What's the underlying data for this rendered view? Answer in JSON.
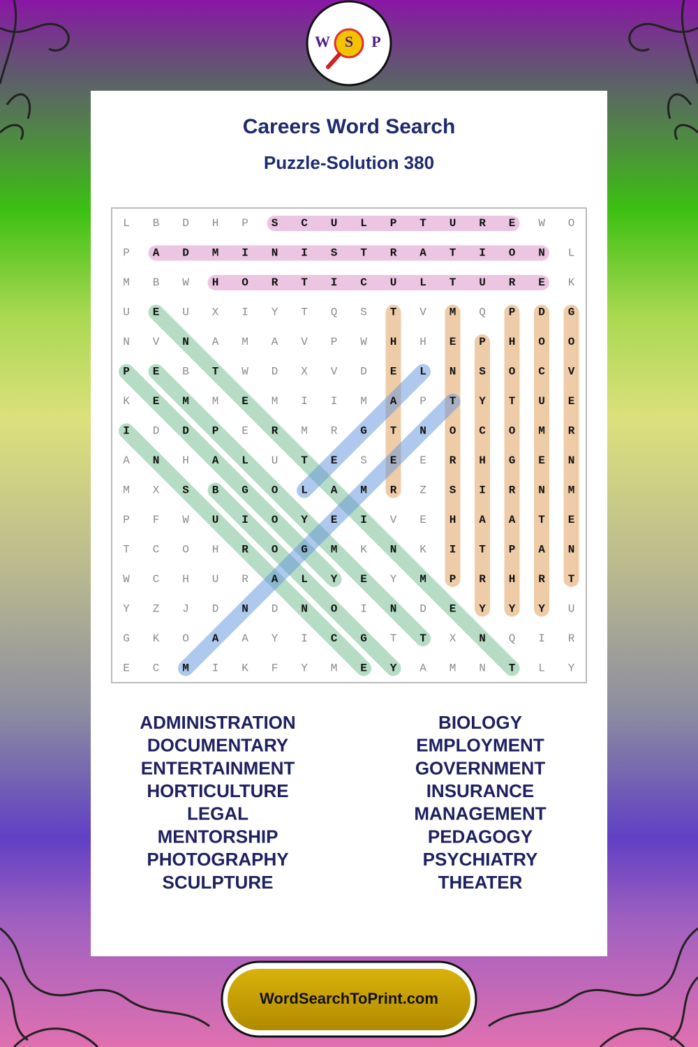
{
  "logo": {
    "letters": [
      "W",
      "S",
      "P"
    ]
  },
  "header": {
    "title": "Careers Word Search",
    "subtitle": "Puzzle-Solution 380"
  },
  "grid": {
    "rows": [
      [
        "L",
        "B",
        "D",
        "H",
        "P",
        "S",
        "C",
        "U",
        "L",
        "P",
        "T",
        "U",
        "R",
        "E",
        "W",
        "O"
      ],
      [
        "P",
        "A",
        "D",
        "M",
        "I",
        "N",
        "I",
        "S",
        "T",
        "R",
        "A",
        "T",
        "I",
        "O",
        "N",
        "L"
      ],
      [
        "M",
        "B",
        "W",
        "H",
        "O",
        "R",
        "T",
        "I",
        "C",
        "U",
        "L",
        "T",
        "U",
        "R",
        "E",
        "K"
      ],
      [
        "U",
        "E",
        "U",
        "X",
        "I",
        "Y",
        "T",
        "Q",
        "S",
        "T",
        "V",
        "M",
        "Q",
        "P",
        "D",
        "G"
      ],
      [
        "N",
        "V",
        "N",
        "A",
        "M",
        "A",
        "V",
        "P",
        "W",
        "H",
        "H",
        "E",
        "P",
        "H",
        "O",
        "O"
      ],
      [
        "P",
        "E",
        "B",
        "T",
        "W",
        "D",
        "X",
        "V",
        "D",
        "E",
        "L",
        "N",
        "S",
        "O",
        "C",
        "V"
      ],
      [
        "K",
        "E",
        "M",
        "M",
        "E",
        "M",
        "I",
        "I",
        "M",
        "A",
        "P",
        "T",
        "Y",
        "T",
        "U",
        "E"
      ],
      [
        "I",
        "D",
        "D",
        "P",
        "E",
        "R",
        "M",
        "R",
        "G",
        "T",
        "N",
        "O",
        "C",
        "O",
        "M",
        "R"
      ],
      [
        "A",
        "N",
        "H",
        "A",
        "L",
        "U",
        "T",
        "E",
        "S",
        "E",
        "E",
        "R",
        "H",
        "G",
        "E",
        "N"
      ],
      [
        "M",
        "X",
        "S",
        "B",
        "G",
        "O",
        "L",
        "A",
        "M",
        "R",
        "Z",
        "S",
        "I",
        "R",
        "N",
        "M"
      ],
      [
        "P",
        "F",
        "W",
        "U",
        "I",
        "O",
        "Y",
        "E",
        "I",
        "V",
        "E",
        "H",
        "A",
        "A",
        "T",
        "E"
      ],
      [
        "T",
        "C",
        "O",
        "H",
        "R",
        "O",
        "G",
        "M",
        "K",
        "N",
        "K",
        "I",
        "T",
        "P",
        "A",
        "N"
      ],
      [
        "W",
        "C",
        "H",
        "U",
        "R",
        "A",
        "L",
        "Y",
        "E",
        "Y",
        "M",
        "P",
        "R",
        "H",
        "R",
        "T"
      ],
      [
        "Y",
        "Z",
        "J",
        "D",
        "N",
        "D",
        "N",
        "O",
        "I",
        "N",
        "D",
        "E",
        "Y",
        "Y",
        "Y",
        "U"
      ],
      [
        "G",
        "K",
        "O",
        "A",
        "A",
        "Y",
        "I",
        "C",
        "G",
        "T",
        "T",
        "X",
        "N",
        "Q",
        "I",
        "R"
      ],
      [
        "E",
        "C",
        "M",
        "I",
        "K",
        "F",
        "Y",
        "M",
        "E",
        "Y",
        "A",
        "M",
        "N",
        "T",
        "L",
        "Y"
      ]
    ]
  },
  "word_list": {
    "left": [
      "ADMINISTRATION",
      "DOCUMENTARY",
      "ENTERTAINMENT",
      "HORTICULTURE",
      "LEGAL",
      "MENTORSHIP",
      "PHOTOGRAPHY",
      "SCULPTURE"
    ],
    "right": [
      "BIOLOGY",
      "EMPLOYMENT",
      "GOVERNMENT",
      "INSURANCE",
      "MANAGEMENT",
      "PEDAGOGY",
      "PSYCHIATRY",
      "THEATER"
    ]
  },
  "footer": {
    "site": "WordSearchToPrint.com"
  }
}
